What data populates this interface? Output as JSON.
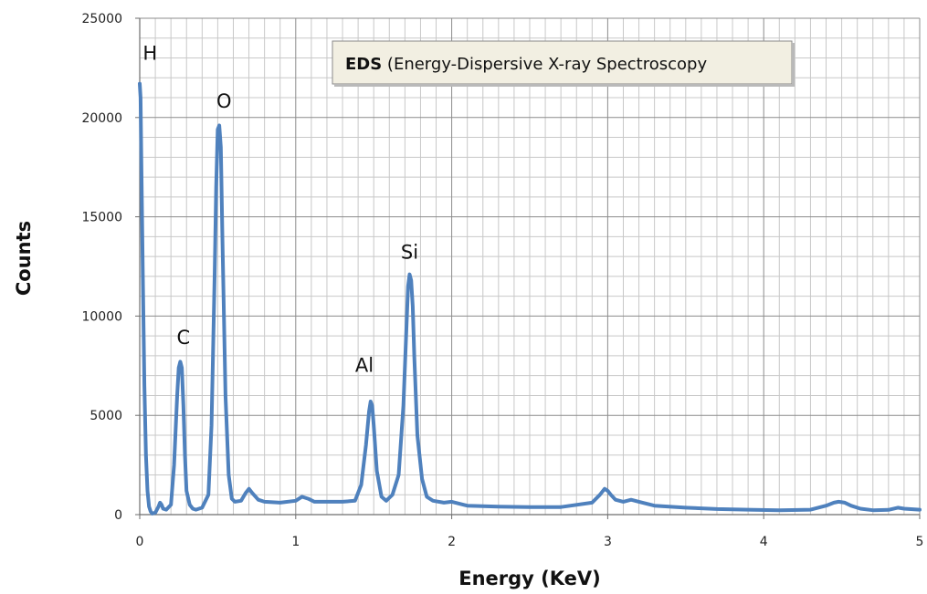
{
  "chart_data": {
    "type": "line",
    "xlabel": "Energy (KeV)",
    "ylabel": "Counts",
    "xlim": [
      0,
      5
    ],
    "ylim": [
      0,
      25000
    ],
    "x_ticks": [
      "0",
      "1",
      "2",
      "3",
      "4",
      "5"
    ],
    "y_ticks": [
      "0",
      "5000",
      "10000",
      "15000",
      "20000",
      "25000"
    ],
    "grid": true,
    "line_color": "#4f81bd",
    "annotation_box": {
      "bold": "EDS",
      "text": " (Energy-Dispersive X-ray Spectroscopy"
    },
    "peak_labels": [
      {
        "text": "H",
        "x": 0.02,
        "y": 22900
      },
      {
        "text": "C",
        "x": 0.28,
        "y": 8600
      },
      {
        "text": "O",
        "x": 0.54,
        "y": 20500
      },
      {
        "text": "Al",
        "x": 1.44,
        "y": 7200
      },
      {
        "text": "Si",
        "x": 1.73,
        "y": 12900
      }
    ],
    "series": [
      {
        "x": [
          0.0,
          0.005,
          0.01,
          0.02,
          0.03,
          0.04,
          0.05,
          0.06,
          0.07,
          0.08,
          0.1,
          0.12,
          0.13,
          0.14,
          0.15,
          0.17,
          0.2,
          0.22,
          0.24,
          0.25,
          0.26,
          0.27,
          0.28,
          0.29,
          0.3,
          0.32,
          0.34,
          0.36,
          0.4,
          0.44,
          0.46,
          0.48,
          0.49,
          0.5,
          0.51,
          0.52,
          0.53,
          0.55,
          0.57,
          0.59,
          0.61,
          0.65,
          0.68,
          0.7,
          0.72,
          0.76,
          0.8,
          0.9,
          1.0,
          1.04,
          1.08,
          1.12,
          1.2,
          1.3,
          1.38,
          1.42,
          1.45,
          1.47,
          1.48,
          1.49,
          1.5,
          1.52,
          1.55,
          1.58,
          1.62,
          1.66,
          1.69,
          1.71,
          1.72,
          1.73,
          1.74,
          1.75,
          1.76,
          1.78,
          1.81,
          1.84,
          1.88,
          1.95,
          2.0,
          2.1,
          2.3,
          2.5,
          2.7,
          2.9,
          2.95,
          2.98,
          3.0,
          3.02,
          3.05,
          3.1,
          3.15,
          3.2,
          3.3,
          3.5,
          3.7,
          3.9,
          4.1,
          4.3,
          4.4,
          4.45,
          4.48,
          4.52,
          4.56,
          4.62,
          4.7,
          4.8,
          4.86,
          4.9,
          5.0
        ],
        "values": [
          21700,
          21000,
          18000,
          12000,
          6500,
          3000,
          1200,
          400,
          150,
          50,
          100,
          400,
          600,
          500,
          300,
          250,
          500,
          2500,
          6000,
          7400,
          7700,
          7400,
          5500,
          3000,
          1200,
          500,
          300,
          250,
          350,
          1000,
          4500,
          12000,
          16500,
          19400,
          19600,
          18500,
          14000,
          6000,
          2000,
          800,
          650,
          700,
          1100,
          1300,
          1100,
          750,
          650,
          600,
          700,
          900,
          800,
          650,
          650,
          650,
          700,
          1500,
          3500,
          5200,
          5700,
          5500,
          4500,
          2200,
          900,
          700,
          1000,
          2000,
          5500,
          9500,
          11500,
          12100,
          11800,
          10500,
          8000,
          4000,
          1800,
          900,
          700,
          600,
          650,
          450,
          400,
          380,
          380,
          600,
          1000,
          1300,
          1200,
          1000,
          750,
          650,
          750,
          650,
          450,
          350,
          280,
          250,
          220,
          250,
          450,
          600,
          650,
          600,
          450,
          300,
          220,
          240,
          350,
          300,
          250
        ]
      }
    ]
  }
}
